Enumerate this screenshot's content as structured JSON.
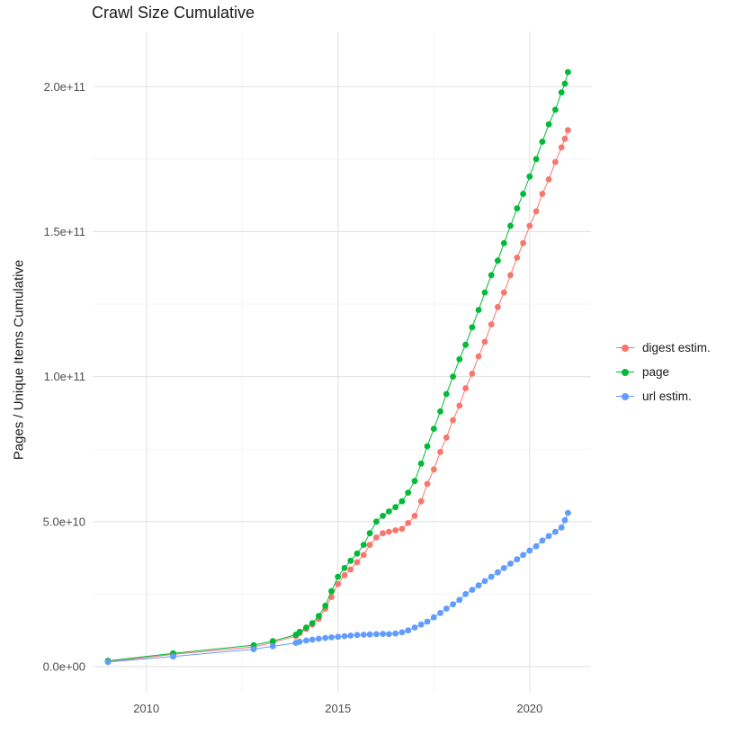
{
  "title": "Crawl Size Cumulative",
  "chart_data": {
    "type": "scatter",
    "mark": "point+line",
    "title": "Crawl Size Cumulative",
    "xlabel": "",
    "ylabel": "Pages / Unique Items Cumulative",
    "legend_position": "right",
    "grid": "on",
    "background": "#ffffff",
    "grid_major_color": "#e3e3e3",
    "grid_minor_color": "#f0f0f0",
    "axis_text_color": "#4d4d4d",
    "x_unit": "year",
    "y_unit_billions": 1000000000,
    "xlim": [
      2008.6,
      2021.6
    ],
    "ylim_billions": [
      -9,
      219
    ],
    "x_ticks": [
      2010,
      2015,
      2020
    ],
    "x_tick_labels": [
      "2010",
      "2015",
      "2020"
    ],
    "x_minor_ticks": [
      2012.5,
      2017.5
    ],
    "y_ticks_billions": [
      0,
      50,
      100,
      150,
      200
    ],
    "y_tick_labels": [
      "0.0e+00",
      "5.0e+10",
      "1.0e+11",
      "1.5e+11",
      "2.0e+11"
    ],
    "y_minor_ticks_billions": [
      25,
      75,
      125,
      175
    ],
    "series": [
      {
        "name": "digest estim.",
        "color": "#F8766D",
        "points_year_billions": [
          [
            2009.0,
            1.7
          ],
          [
            2010.7,
            4.2
          ],
          [
            2012.8,
            6.8
          ],
          [
            2013.3,
            8.3
          ],
          [
            2013.9,
            10.5
          ],
          [
            2014.0,
            11.5
          ],
          [
            2014.17,
            13
          ],
          [
            2014.33,
            14.5
          ],
          [
            2014.5,
            16.5
          ],
          [
            2014.67,
            20
          ],
          [
            2014.83,
            24
          ],
          [
            2015.0,
            28.5
          ],
          [
            2015.17,
            31.5
          ],
          [
            2015.33,
            33.5
          ],
          [
            2015.5,
            36
          ],
          [
            2015.67,
            38.5
          ],
          [
            2015.83,
            42
          ],
          [
            2016.0,
            44.5
          ],
          [
            2016.17,
            46
          ],
          [
            2016.33,
            46.5
          ],
          [
            2016.5,
            47
          ],
          [
            2016.67,
            47.5
          ],
          [
            2016.83,
            49.5
          ],
          [
            2017.0,
            52
          ],
          [
            2017.17,
            57
          ],
          [
            2017.33,
            63
          ],
          [
            2017.5,
            68
          ],
          [
            2017.67,
            74
          ],
          [
            2017.83,
            79
          ],
          [
            2018.0,
            85
          ],
          [
            2018.17,
            90
          ],
          [
            2018.33,
            96
          ],
          [
            2018.5,
            101
          ],
          [
            2018.67,
            107
          ],
          [
            2018.83,
            112
          ],
          [
            2019.0,
            118
          ],
          [
            2019.17,
            124
          ],
          [
            2019.33,
            129
          ],
          [
            2019.5,
            135
          ],
          [
            2019.67,
            141
          ],
          [
            2019.83,
            146
          ],
          [
            2020.0,
            152
          ],
          [
            2020.17,
            157
          ],
          [
            2020.33,
            163
          ],
          [
            2020.5,
            168
          ],
          [
            2020.67,
            174
          ],
          [
            2020.83,
            179
          ],
          [
            2020.92,
            182
          ],
          [
            2021.0,
            185
          ]
        ]
      },
      {
        "name": "page",
        "color": "#00BA38",
        "points_year_billions": [
          [
            2009.0,
            2
          ],
          [
            2010.7,
            4.6
          ],
          [
            2012.8,
            7.4
          ],
          [
            2013.3,
            8.8
          ],
          [
            2013.9,
            11
          ],
          [
            2014.0,
            12
          ],
          [
            2014.17,
            13.5
          ],
          [
            2014.33,
            15
          ],
          [
            2014.5,
            17.5
          ],
          [
            2014.67,
            21
          ],
          [
            2014.83,
            26
          ],
          [
            2015.0,
            31
          ],
          [
            2015.17,
            34
          ],
          [
            2015.33,
            36.5
          ],
          [
            2015.5,
            39
          ],
          [
            2015.67,
            42
          ],
          [
            2015.83,
            46
          ],
          [
            2016.0,
            50
          ],
          [
            2016.17,
            52
          ],
          [
            2016.33,
            53.5
          ],
          [
            2016.5,
            55
          ],
          [
            2016.67,
            57
          ],
          [
            2016.83,
            60
          ],
          [
            2017.0,
            64
          ],
          [
            2017.17,
            70
          ],
          [
            2017.33,
            76
          ],
          [
            2017.5,
            82
          ],
          [
            2017.67,
            88
          ],
          [
            2017.83,
            94
          ],
          [
            2018.0,
            100
          ],
          [
            2018.17,
            106
          ],
          [
            2018.33,
            111
          ],
          [
            2018.5,
            117
          ],
          [
            2018.67,
            123
          ],
          [
            2018.83,
            129
          ],
          [
            2019.0,
            135
          ],
          [
            2019.17,
            140
          ],
          [
            2019.33,
            146
          ],
          [
            2019.5,
            152
          ],
          [
            2019.67,
            158
          ],
          [
            2019.83,
            163
          ],
          [
            2020.0,
            169
          ],
          [
            2020.17,
            175
          ],
          [
            2020.33,
            181
          ],
          [
            2020.5,
            187
          ],
          [
            2020.67,
            192
          ],
          [
            2020.83,
            198
          ],
          [
            2020.92,
            201
          ],
          [
            2021.0,
            205
          ]
        ]
      },
      {
        "name": "url estim.",
        "color": "#619CFF",
        "points_year_billions": [
          [
            2009.0,
            1.6
          ],
          [
            2010.7,
            3.5
          ],
          [
            2012.8,
            6
          ],
          [
            2013.3,
            7
          ],
          [
            2013.9,
            8.2
          ],
          [
            2014.0,
            8.6
          ],
          [
            2014.17,
            9
          ],
          [
            2014.33,
            9.3
          ],
          [
            2014.5,
            9.6
          ],
          [
            2014.67,
            9.9
          ],
          [
            2014.83,
            10.1
          ],
          [
            2015.0,
            10.3
          ],
          [
            2015.17,
            10.5
          ],
          [
            2015.33,
            10.7
          ],
          [
            2015.5,
            10.9
          ],
          [
            2015.67,
            11
          ],
          [
            2015.83,
            11.1
          ],
          [
            2016.0,
            11.2
          ],
          [
            2016.17,
            11.3
          ],
          [
            2016.33,
            11.2
          ],
          [
            2016.5,
            11.4
          ],
          [
            2016.67,
            11.8
          ],
          [
            2016.83,
            12.5
          ],
          [
            2017.0,
            13.5
          ],
          [
            2017.17,
            14.5
          ],
          [
            2017.33,
            15.5
          ],
          [
            2017.5,
            17
          ],
          [
            2017.67,
            18.5
          ],
          [
            2017.83,
            20
          ],
          [
            2018.0,
            21.5
          ],
          [
            2018.17,
            23
          ],
          [
            2018.33,
            25
          ],
          [
            2018.5,
            26.5
          ],
          [
            2018.67,
            28
          ],
          [
            2018.83,
            29.5
          ],
          [
            2019.0,
            31
          ],
          [
            2019.17,
            32.5
          ],
          [
            2019.33,
            34
          ],
          [
            2019.5,
            35.5
          ],
          [
            2019.67,
            37
          ],
          [
            2019.83,
            38.5
          ],
          [
            2020.0,
            40
          ],
          [
            2020.17,
            41.5
          ],
          [
            2020.33,
            43.5
          ],
          [
            2020.5,
            45
          ],
          [
            2020.67,
            46.5
          ],
          [
            2020.83,
            48
          ],
          [
            2020.92,
            50.5
          ],
          [
            2021.0,
            53
          ]
        ]
      }
    ]
  }
}
